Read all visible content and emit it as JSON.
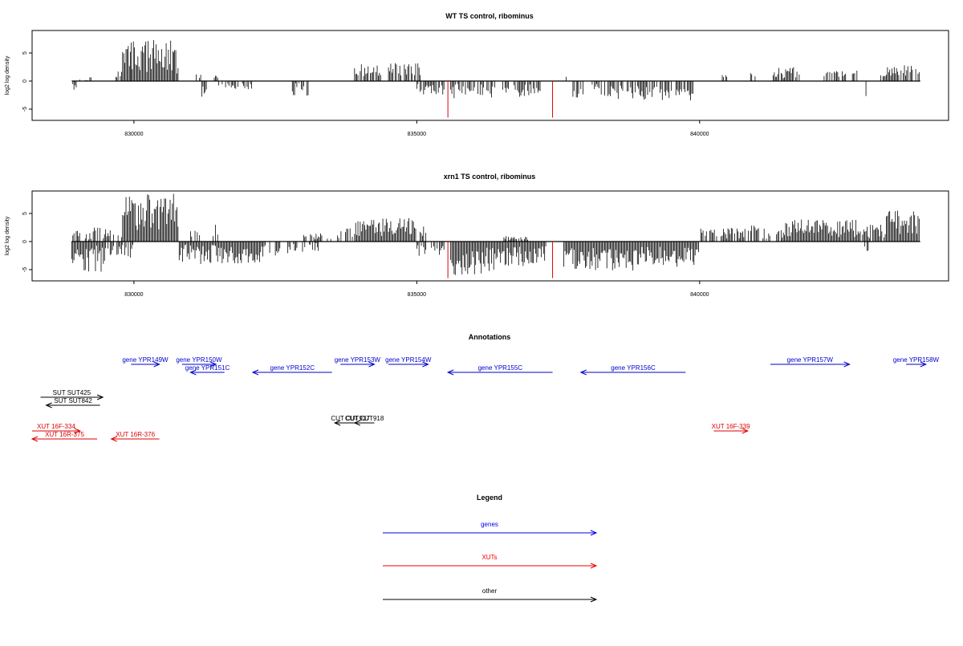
{
  "chart_data": [
    {
      "type": "bar",
      "title": "WT TS control, ribominus",
      "ylabel": "log2 log density",
      "xlim": [
        828200,
        844400
      ],
      "ylim": [
        -7,
        9
      ],
      "x_ticks": [
        830000,
        835000,
        840000
      ],
      "x_tick_labels": [
        "830000",
        "835000",
        "840000"
      ],
      "y_ticks": [
        -5,
        0,
        5
      ],
      "y_tick_labels": [
        "-5",
        "0",
        "5"
      ],
      "highlight_x": [
        835550,
        837400
      ],
      "highlight_value": -6.5,
      "highlight_color": "#e00000",
      "series": [
        {
          "strand": "+",
          "profile": [
            [
              828900,
              829200,
              0,
              0.3
            ],
            [
              829200,
              829300,
              0.6,
              1.0
            ],
            [
              829600,
              829800,
              0.5,
              1.8
            ],
            [
              829800,
              829950,
              2.5,
              6.5
            ],
            [
              829950,
              830700,
              1.5,
              7.3
            ],
            [
              830700,
              830800,
              0.5,
              6.0
            ],
            [
              831100,
              831200,
              0.3,
              1.5
            ],
            [
              831400,
              831500,
              0.3,
              1.0
            ],
            [
              833900,
              834400,
              0.8,
              3.0
            ],
            [
              834500,
              835100,
              1.0,
              3.2
            ],
            [
              837600,
              837700,
              0.3,
              1.0
            ],
            [
              840400,
              840500,
              0.5,
              1.2
            ],
            [
              840900,
              841000,
              0.8,
              1.5
            ],
            [
              841300,
              841800,
              0.5,
              2.5
            ],
            [
              842200,
              842600,
              0.6,
              1.8
            ],
            [
              842700,
              842800,
              1.0,
              2.8
            ],
            [
              843200,
              843300,
              0.8,
              1.2
            ],
            [
              843300,
              843900,
              0.8,
              2.8
            ]
          ]
        },
        {
          "strand": "-",
          "profile": [
            [
              828900,
              829000,
              0.5,
              2.0
            ],
            [
              831200,
              831300,
              0.5,
              2.8
            ],
            [
              831500,
              832100,
              0.3,
              1.5
            ],
            [
              832800,
              833100,
              0.3,
              2.6
            ],
            [
              835000,
              835500,
              0.5,
              2.5
            ],
            [
              835600,
              836400,
              0.5,
              3.2
            ],
            [
              836500,
              837200,
              0.5,
              3.0
            ],
            [
              837700,
              838000,
              1.0,
              3.0
            ],
            [
              838100,
              838800,
              0.5,
              3.2
            ],
            [
              838800,
              839900,
              0.8,
              3.5
            ],
            [
              842900,
              843000,
              1.0,
              3.0
            ]
          ]
        }
      ]
    },
    {
      "type": "bar",
      "title": "xrn1 TS control, ribominus",
      "ylabel": "log2 log density",
      "xlim": [
        828200,
        844400
      ],
      "ylim": [
        -7,
        9
      ],
      "x_ticks": [
        830000,
        835000,
        840000
      ],
      "x_tick_labels": [
        "830000",
        "835000",
        "840000"
      ],
      "y_ticks": [
        -5,
        0,
        5
      ],
      "y_tick_labels": [
        "-5",
        "0",
        "5"
      ],
      "highlight_x": [
        835550,
        837400
      ],
      "highlight_value": -6.5,
      "highlight_color": "#e00000",
      "series": [
        {
          "strand": "+",
          "profile": [
            [
              828900,
              829300,
              0.3,
              2.0
            ],
            [
              829300,
              829800,
              0.5,
              2.5
            ],
            [
              829800,
              830800,
              2.0,
              8.5
            ],
            [
              831000,
              831200,
              0.5,
              2.0
            ],
            [
              831400,
              831500,
              0.5,
              3.0
            ],
            [
              833000,
              833500,
              0.3,
              1.5
            ],
            [
              833600,
              833900,
              0.5,
              2.5
            ],
            [
              833900,
              835000,
              1.0,
              4.2
            ],
            [
              835000,
              835200,
              1.0,
              3.0
            ],
            [
              836500,
              837000,
              0.3,
              1.0
            ],
            [
              840000,
              840800,
              0.5,
              2.5
            ],
            [
              840800,
              841500,
              0.5,
              3.0
            ],
            [
              841500,
              842800,
              0.8,
              4.0
            ],
            [
              842800,
              843300,
              0.5,
              3.0
            ],
            [
              843300,
              843900,
              1.0,
              5.5
            ]
          ]
        },
        {
          "strand": "-",
          "profile": [
            [
              828900,
              829500,
              0.5,
              5.5
            ],
            [
              829500,
              830000,
              0.5,
              3.0
            ],
            [
              830800,
              832300,
              0.5,
              4.0
            ],
            [
              832300,
              832800,
              0.3,
              2.5
            ],
            [
              832800,
              833300,
              0.3,
              2.0
            ],
            [
              835000,
              835500,
              0.5,
              3.0
            ],
            [
              835600,
              836500,
              1.0,
              6.0
            ],
            [
              836500,
              837300,
              0.8,
              4.5
            ],
            [
              837600,
              838100,
              1.0,
              5.0
            ],
            [
              838100,
              838900,
              1.0,
              5.2
            ],
            [
              838900,
              840000,
              0.8,
              4.5
            ],
            [
              842900,
              843000,
              0.5,
              2.5
            ]
          ]
        }
      ]
    },
    {
      "type": "annotation",
      "title": "Annotations",
      "xlim": [
        828200,
        844400
      ],
      "features": [
        {
          "label": "gene YPR149W",
          "start": 829950,
          "end": 830450,
          "strand": "+",
          "row": 0,
          "color": "#0000cc"
        },
        {
          "label": "gene YPR150W",
          "start": 830850,
          "end": 831450,
          "strand": "+",
          "row": 0,
          "color": "#0000cc"
        },
        {
          "label": "gene YPR151C",
          "start": 831000,
          "end": 831600,
          "strand": "-",
          "row": 1,
          "color": "#0000cc"
        },
        {
          "label": "gene YPR152C",
          "start": 832100,
          "end": 833500,
          "strand": "-",
          "row": 1,
          "color": "#0000cc"
        },
        {
          "label": "gene YPR153W",
          "start": 833650,
          "end": 834250,
          "strand": "+",
          "row": 0,
          "color": "#0000cc"
        },
        {
          "label": "gene YPR154W",
          "start": 834500,
          "end": 835200,
          "strand": "+",
          "row": 0,
          "color": "#0000cc"
        },
        {
          "label": "gene YPR155C",
          "start": 835550,
          "end": 837400,
          "strand": "-",
          "row": 1,
          "color": "#0000cc"
        },
        {
          "label": "gene YPR156C",
          "start": 837900,
          "end": 839750,
          "strand": "-",
          "row": 1,
          "color": "#0000cc"
        },
        {
          "label": "gene YPR157W",
          "start": 841250,
          "end": 842650,
          "strand": "+",
          "row": 0,
          "color": "#0000cc"
        },
        {
          "label": "gene YPR158W",
          "start": 843650,
          "end": 844000,
          "strand": "+",
          "row": 0,
          "color": "#0000cc"
        },
        {
          "label": "SUT SUT425",
          "start": 828350,
          "end": 829450,
          "strand": "+",
          "row": 2,
          "color": "#000000"
        },
        {
          "label": "SUT SUT842",
          "start": 828450,
          "end": 829400,
          "strand": "-",
          "row": 3,
          "color": "#000000"
        },
        {
          "label": "CUT CUT917",
          "start": 833550,
          "end": 834100,
          "strand": "-",
          "row": 4,
          "color": "#000000"
        },
        {
          "label": "CUT CUT918",
          "start": 833900,
          "end": 834250,
          "strand": "-",
          "row": 4,
          "color": "#000000"
        },
        {
          "label": "XUT 16F-334",
          "start": 828200,
          "end": 829050,
          "strand": "+",
          "row": 5,
          "color": "#dd0000"
        },
        {
          "label": "XUT 16R-375",
          "start": 828200,
          "end": 829350,
          "strand": "-",
          "row": 6,
          "color": "#dd0000"
        },
        {
          "label": "XUT 16R-376",
          "start": 829600,
          "end": 830450,
          "strand": "-",
          "row": 6,
          "color": "#dd0000"
        },
        {
          "label": "XUT 16F-339",
          "start": 840250,
          "end": 840850,
          "strand": "+",
          "row": 5,
          "color": "#dd0000"
        }
      ]
    },
    {
      "type": "legend",
      "title": "Legend",
      "entries": [
        {
          "label": "genes",
          "color": "#0000ee"
        },
        {
          "label": "XUTs",
          "color": "#ee0000"
        },
        {
          "label": "other",
          "color": "#000000"
        }
      ]
    }
  ]
}
